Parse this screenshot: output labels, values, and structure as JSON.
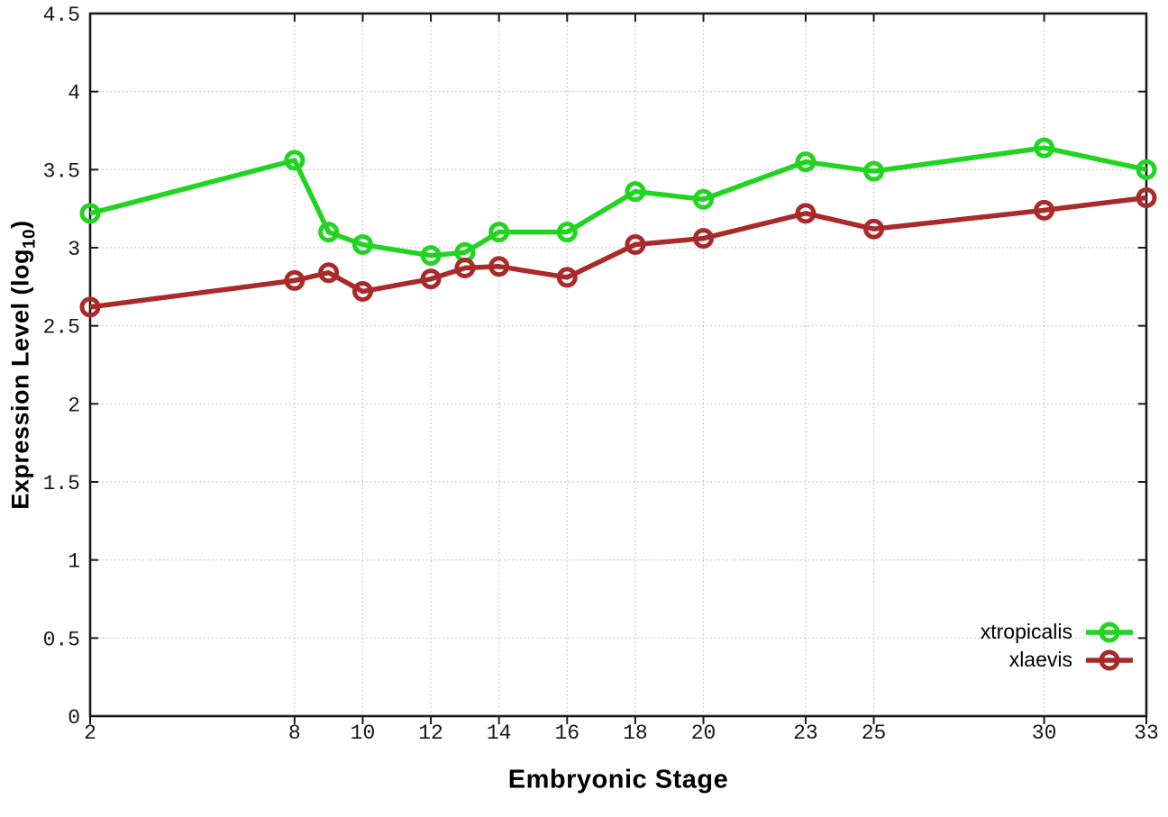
{
  "chart_data": {
    "type": "line",
    "title": "",
    "xlabel": "Embryonic Stage",
    "ylabel": "Expression Level (log10)",
    "ylabel_parts": {
      "main": "Expression Level (log",
      "sub": "10",
      "end": ")"
    },
    "x": [
      2,
      8,
      9,
      10,
      12,
      13,
      14,
      16,
      18,
      20,
      23,
      25,
      30,
      33
    ],
    "series": [
      {
        "name": "xtropicalis",
        "color": "#22d422",
        "values": [
          3.22,
          3.56,
          3.1,
          3.02,
          2.95,
          2.97,
          3.1,
          3.1,
          3.36,
          3.31,
          3.55,
          3.49,
          3.64,
          3.5
        ]
      },
      {
        "name": "xlaevis",
        "color": "#a82a2a",
        "values": [
          2.62,
          2.79,
          2.84,
          2.72,
          2.8,
          2.87,
          2.88,
          2.81,
          3.02,
          3.06,
          3.22,
          3.12,
          3.24,
          3.32
        ]
      }
    ],
    "x_ticks": [
      2,
      8,
      10,
      12,
      14,
      16,
      18,
      20,
      23,
      25,
      30,
      33
    ],
    "y_ticks": [
      0,
      0.5,
      1,
      1.5,
      2,
      2.5,
      3,
      3.5,
      4,
      4.5
    ],
    "xlim": [
      2,
      33
    ],
    "ylim": [
      0,
      4.5
    ],
    "grid": true,
    "grid_style": "dotted",
    "border": "box",
    "marker": "open-circle",
    "legend_position": "bottom-right",
    "colors": {
      "background": "#ffffff",
      "grid": "#bdbdbd",
      "axis": "#1a1a1a",
      "tick_text": "#161616"
    }
  }
}
